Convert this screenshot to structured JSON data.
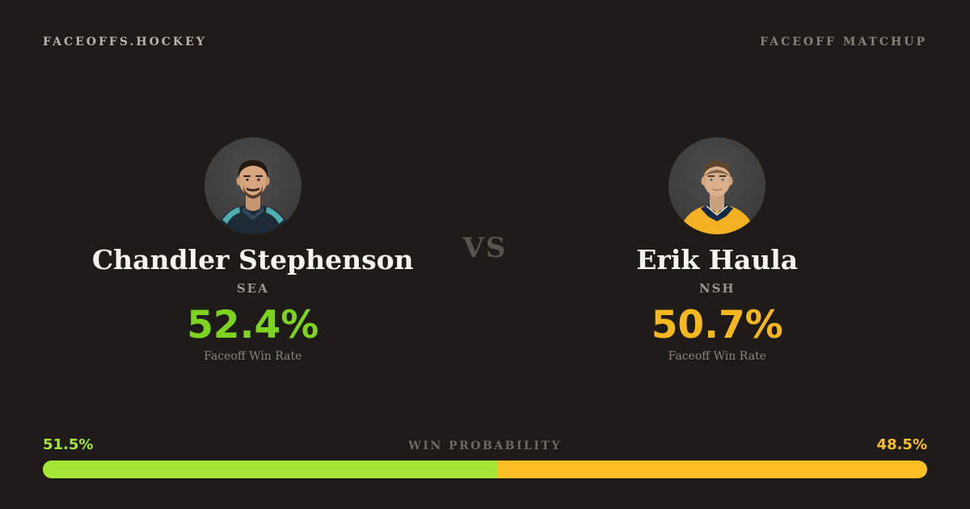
{
  "header": {
    "brand": "FACEOFFS.HOCKEY",
    "page_label": "FACEOFF MATCHUP"
  },
  "vs_label": "VS",
  "players": {
    "left": {
      "name": "Chandler Stephenson",
      "team": "SEA",
      "win_rate": "52.4%",
      "stat_label": "Faceoff Win Rate",
      "accent_color": "#7ed321",
      "photo": "chandler-stephenson-headshot-dark-navy-teal-jersey"
    },
    "right": {
      "name": "Erik Haula",
      "team": "NSH",
      "win_rate": "50.7%",
      "stat_label": "Faceoff Win Rate",
      "accent_color": "#f5b81e",
      "photo": "erik-haula-headshot-yellow-navy-jersey"
    }
  },
  "win_probability": {
    "label": "WIN PROBABILITY",
    "left_pct_label": "51.5%",
    "right_pct_label": "48.5%",
    "left_value": 51.5,
    "right_value": 48.5,
    "left_color": "#a3e635",
    "right_color": "#fbbf24",
    "background_color": "#1f1b18"
  }
}
